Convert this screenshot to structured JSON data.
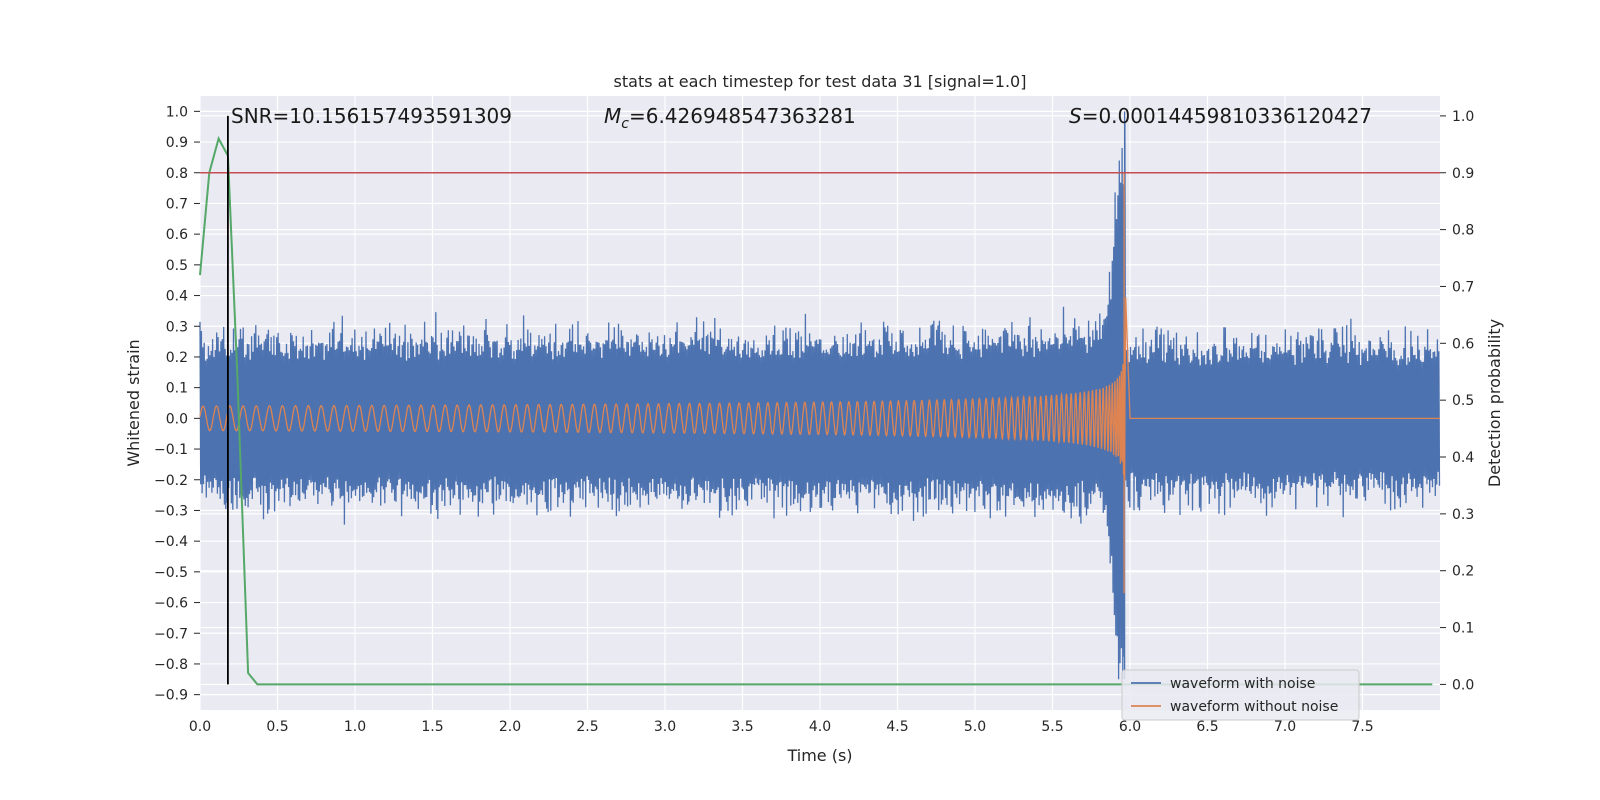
{
  "chart_data": {
    "type": "line",
    "title": "stats at each timestep for test data 31 [signal=1.0]",
    "xlabel": "Time (s)",
    "ylabel_left": "Whitened strain",
    "ylabel_right": "Detection probability",
    "xlim": [
      0.0,
      8.0
    ],
    "ylim_left": [
      -0.95,
      1.05
    ],
    "ylim_right": [
      -0.045,
      1.035
    ],
    "x_ticks": [
      "0.0",
      "0.5",
      "1.0",
      "1.5",
      "2.0",
      "2.5",
      "3.0",
      "3.5",
      "4.0",
      "4.5",
      "5.0",
      "5.5",
      "6.0",
      "6.5",
      "7.0",
      "7.5"
    ],
    "y_left_ticks": [
      "1.0",
      "0.9",
      "0.8",
      "0.7",
      "0.6",
      "0.5",
      "0.4",
      "0.3",
      "0.2",
      "0.1",
      "0.0",
      "−0.1",
      "−0.2",
      "−0.3",
      "−0.4",
      "−0.5",
      "−0.6",
      "−0.7",
      "−0.8",
      "−0.9"
    ],
    "y_right_ticks": [
      "1.0",
      "0.9",
      "0.8",
      "0.7",
      "0.6",
      "0.5",
      "0.4",
      "0.3",
      "0.2",
      "0.1",
      "0.0"
    ],
    "grid": true,
    "legend_position": "lower-right",
    "colors": {
      "noise": "#4c72b0",
      "clean": "#dd8452",
      "prob": "#55a868",
      "threshold": "#c44e52",
      "marker": "#000000",
      "background": "#eaeaf2"
    },
    "annotations": {
      "snr": "SNR=10.156157493591309",
      "mc_symbol": "M",
      "mc_sub": "c",
      "mc_value": "=6.426948547363281",
      "s_symbol": "S",
      "s_value": "=0.00014459810336120427"
    },
    "series": [
      {
        "name": "waveform with noise",
        "description_values": {
          "baseline_amplitude": 0.33,
          "merger_time": 5.97,
          "peak_max": 1.0,
          "peak_min": -0.85
        }
      },
      {
        "name": "waveform without noise",
        "description_values": {
          "start_amplitude": 0.04,
          "merger_time": 5.97,
          "peak_max": 0.8,
          "peak_min": -0.57
        }
      },
      {
        "name": "detection probability",
        "x": [
          0.0,
          0.06,
          0.12,
          0.18,
          0.24,
          0.31,
          0.37,
          0.45,
          7.95
        ],
        "y": [
          0.72,
          0.9,
          0.96,
          0.93,
          0.55,
          0.02,
          0.0,
          0.0,
          0.0
        ]
      }
    ],
    "threshold_probability": 0.9,
    "marker_time": 0.18
  },
  "legend": {
    "item1": "waveform with noise",
    "item2": "waveform without noise"
  }
}
